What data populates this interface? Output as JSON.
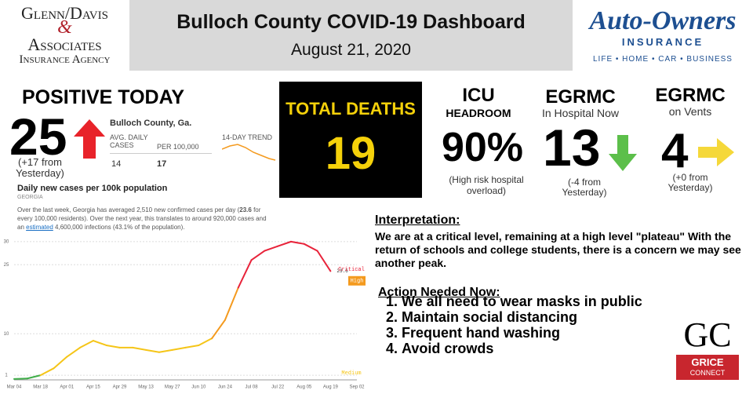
{
  "header": {
    "left_logo": {
      "line1": "Glenn/Davis",
      "amp": "&",
      "line2": "Associates",
      "line3": "Insurance Agency"
    },
    "title": "Bulloch County COVID-19 Dashboard",
    "date": "August 21, 2020",
    "right_logo": {
      "name": "Auto-Owners",
      "sub": "INSURANCE",
      "tagline": "LIFE • HOME • CAR • BUSINESS"
    }
  },
  "positive": {
    "heading": "POSITIVE TODAY",
    "value": "25",
    "change": "(+17 from Yesterday)",
    "widget": {
      "county": "Bulloch County, Ga.",
      "col1": "AVG. DAILY CASES",
      "col2": "PER 100,000",
      "val1": "14",
      "val2": "17",
      "trend": "14-DAY TREND"
    }
  },
  "deaths": {
    "heading": "TOTAL DEATHS",
    "value": "19"
  },
  "icu": {
    "heading": "ICU",
    "sub": "HEADROOM",
    "value": "90%",
    "note": "(High risk hospital overload)"
  },
  "hospital": {
    "heading": "EGRMC",
    "sub": "In Hospital Now",
    "value": "13",
    "note": "(-4 from Yesterday)"
  },
  "vents": {
    "heading": "EGRMC",
    "sub": "on Vents",
    "value": "4",
    "note": "(+0 from Yesterday)"
  },
  "georgia": {
    "title": "Daily new cases per 100k population",
    "region": "GEORGIA",
    "text_a": "Over the last week, Georgia has averaged 2,510 new confirmed cases per day (",
    "text_b": "23.6",
    "text_c": " for every 100,000 residents). Over the next year, this translates to around 920,000 cases and an ",
    "text_link": "estimated",
    "text_d": " 4,600,000 infections (43.1% of the population)."
  },
  "chart_data": {
    "type": "line",
    "categories": [
      "Mar 04",
      null,
      "Mar 18",
      null,
      "Apr 01",
      null,
      "Apr 15",
      null,
      "Apr 29",
      null,
      "May 13",
      null,
      "May 27",
      null,
      "Jun 10",
      null,
      "Jun 24",
      null,
      "Jul 08",
      null,
      "Jul 22",
      null,
      "Aug 05",
      null,
      "Aug 19",
      null,
      "Sep 02"
    ],
    "series": [
      {
        "values": [
          0.2,
          0.3,
          1,
          2.5,
          5,
          7,
          8.5,
          7.5,
          7,
          7,
          6.5,
          6,
          6.5,
          7,
          7.5,
          9,
          13,
          20,
          26,
          28,
          29,
          30,
          29.5,
          28,
          23.6,
          null,
          null
        ]
      }
    ],
    "end_label": "23.6",
    "ylim": [
      0,
      31
    ],
    "yticks": [
      1,
      10,
      25,
      30
    ],
    "grid": true,
    "zones": [
      {
        "label": null,
        "upto": 1,
        "color": "#3fae49"
      },
      {
        "label": "Medium",
        "upto": 10,
        "color": "#f5c518"
      },
      {
        "label": "High",
        "upto": 25,
        "color": "#f49a1e"
      },
      {
        "label": "Critical",
        "upto": 31,
        "color": "#e8233a"
      }
    ]
  },
  "interpretation": {
    "heading": "Interpretation:",
    "text": "We are at a critical level, remaining at a high level \"plateau\" With the return of schools and college students, there is a concern we may see another peak."
  },
  "actions": {
    "heading": "Action Needed Now:",
    "items": [
      "We all need to wear masks in public",
      "Maintain social distancing",
      "Frequent hand washing",
      "Avoid crowds"
    ]
  },
  "gc_logo": {
    "letters": "GC",
    "line1": "GRICE",
    "line2": "CONNECT"
  }
}
